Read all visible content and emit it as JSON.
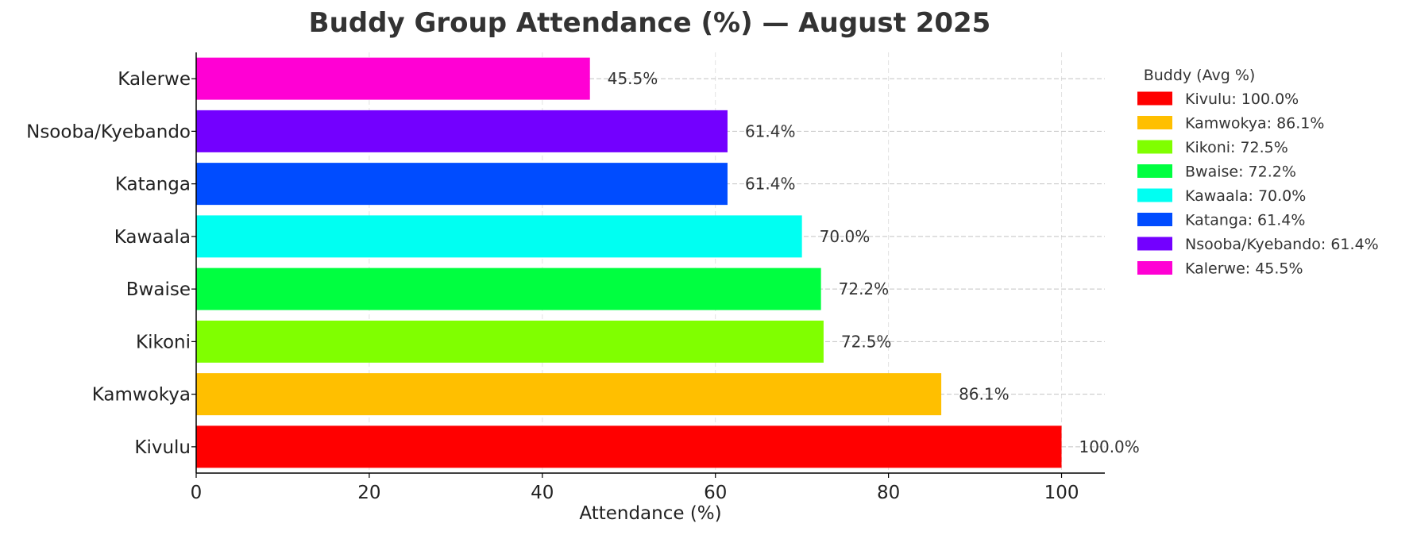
{
  "chart_data": {
    "type": "bar",
    "orientation": "horizontal",
    "title": "Buddy Group Attendance (%) — August 2025",
    "xlabel": "Attendance (%)",
    "ylabel": "",
    "xlim": [
      0,
      105
    ],
    "xticks": [
      0,
      20,
      40,
      60,
      80,
      100
    ],
    "grid": true,
    "categories": [
      "Kivulu",
      "Kamwokya",
      "Kikoni",
      "Bwaise",
      "Kawaala",
      "Katanga",
      "Nsooba/Kyebando",
      "Kalerwe"
    ],
    "values": [
      100.0,
      86.1,
      72.5,
      72.2,
      70.0,
      61.4,
      61.4,
      45.5
    ],
    "data_labels": [
      "100.0%",
      "86.1%",
      "72.5%",
      "72.2%",
      "70.0%",
      "61.4%",
      "61.4%",
      "45.5%"
    ],
    "colors": [
      "#ff0000",
      "#ffbf00",
      "#80ff00",
      "#00ff40",
      "#00fff2",
      "#004cff",
      "#7300ff",
      "#ff00d4"
    ],
    "legend": {
      "title": "Buddy (Avg %)",
      "placement": "upper-right-outside",
      "entries": [
        "Kivulu: 100.0%",
        "Kamwokya: 86.1%",
        "Kikoni: 72.5%",
        "Bwaise: 72.2%",
        "Kawaala: 70.0%",
        "Katanga: 61.4%",
        "Nsooba/Kyebando: 61.4%",
        "Kalerwe: 45.5%"
      ]
    }
  }
}
